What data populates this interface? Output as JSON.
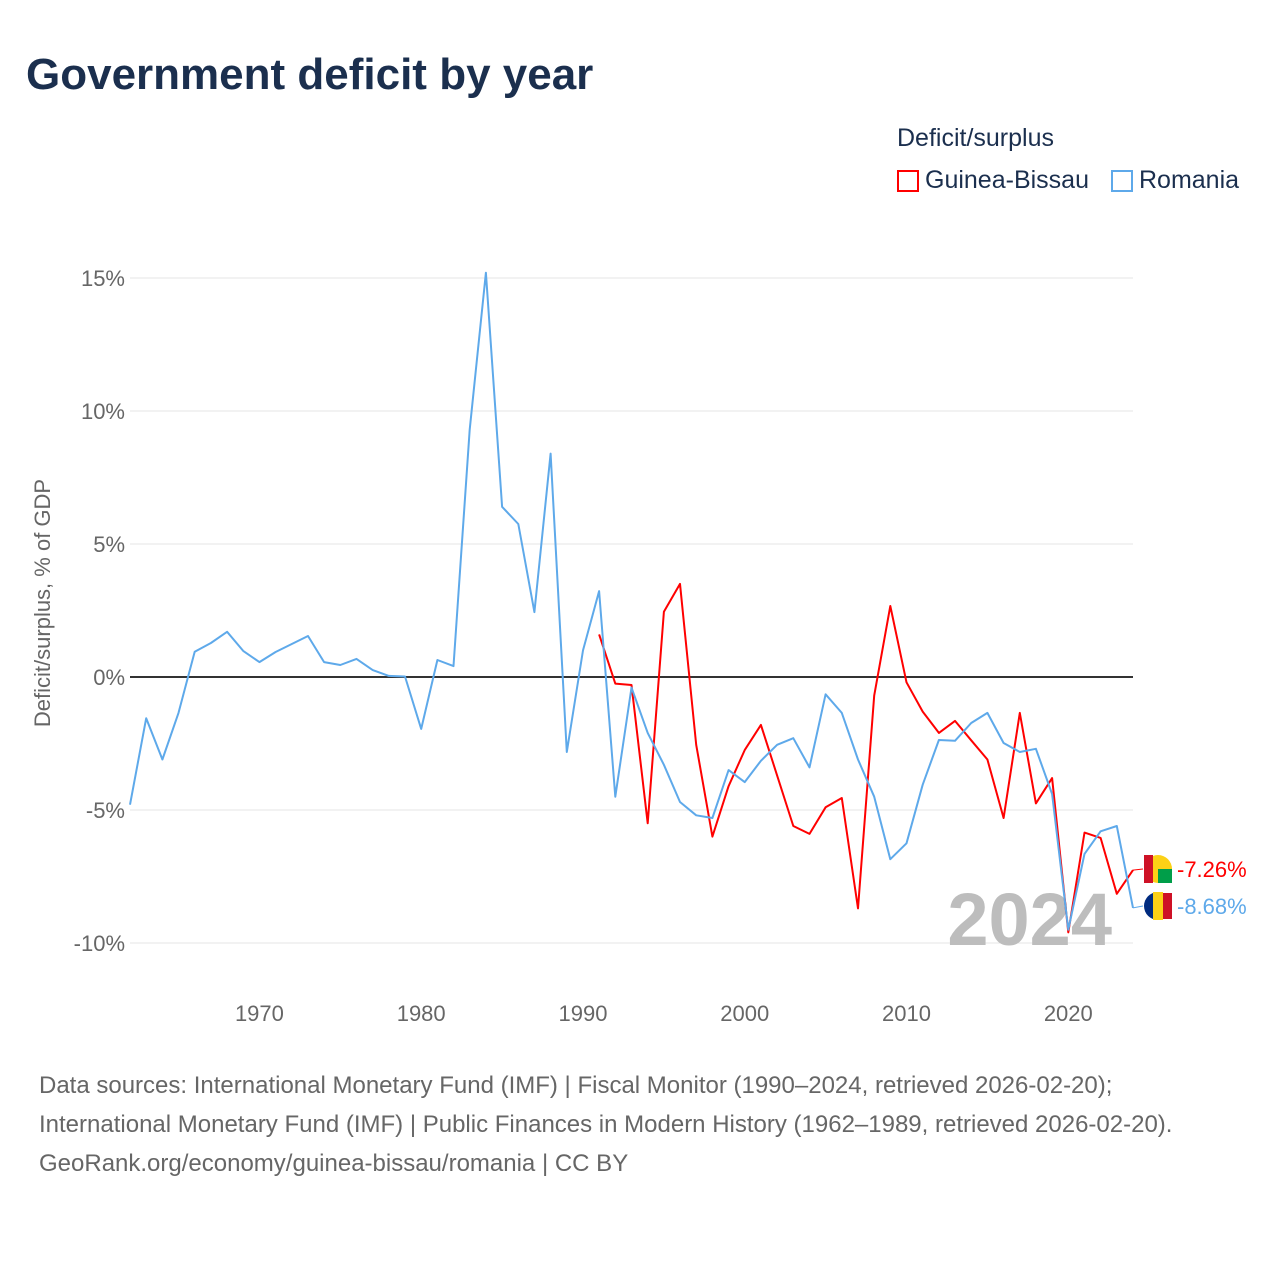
{
  "title": "Government deficit by year",
  "legend": {
    "title": "Deficit/surplus",
    "items": [
      {
        "label": "Guinea-Bissau",
        "color": "#ff0000"
      },
      {
        "label": "Romania",
        "color": "#5ea9ea"
      }
    ]
  },
  "chart_data": {
    "type": "line",
    "ylabel": "Deficit/surplus, % of GDP",
    "xlabel": "",
    "xlim": [
      1962,
      2024
    ],
    "ylim": [
      -11,
      16
    ],
    "yticks": [
      {
        "v": 15,
        "label": "15%"
      },
      {
        "v": 10,
        "label": "10%"
      },
      {
        "v": 5,
        "label": "5%"
      },
      {
        "v": 0,
        "label": "0%"
      },
      {
        "v": -5,
        "label": "-5%"
      },
      {
        "v": -10,
        "label": "-10%"
      }
    ],
    "xticks": [
      {
        "v": 1970,
        "label": "1970"
      },
      {
        "v": 1980,
        "label": "1980"
      },
      {
        "v": 1990,
        "label": "1990"
      },
      {
        "v": 2000,
        "label": "2000"
      },
      {
        "v": 2010,
        "label": "2010"
      },
      {
        "v": 2020,
        "label": "2020"
      }
    ],
    "year_watermark": "2024",
    "series": [
      {
        "name": "Guinea-Bissau",
        "color": "#ff0000",
        "end_label": "-7.26%",
        "start": 1991,
        "values": [
          1.6,
          -0.25,
          -0.3,
          -5.5,
          2.45,
          3.5,
          -2.55,
          -6.0,
          -4.1,
          -2.75,
          -1.8,
          -3.7,
          -5.6,
          -5.9,
          -4.9,
          -4.55,
          -8.7,
          -0.7,
          2.67,
          -0.2,
          -1.3,
          -2.1,
          -1.65,
          -2.38,
          -3.1,
          -5.3,
          -1.35,
          -4.75,
          -3.8,
          -9.6,
          -5.85,
          -6.05,
          -8.15,
          -7.26
        ]
      },
      {
        "name": "Romania",
        "color": "#5ea9ea",
        "end_label": "-8.68%",
        "start": 1962,
        "values": [
          -4.8,
          -1.55,
          -3.1,
          -1.35,
          0.95,
          1.28,
          1.7,
          0.98,
          0.56,
          0.94,
          1.24,
          1.54,
          0.56,
          0.45,
          0.68,
          0.26,
          0.04,
          0.02,
          -1.95,
          0.64,
          0.41,
          9.3,
          15.2,
          6.4,
          5.75,
          2.44,
          8.4,
          -2.82,
          1.0,
          3.23,
          -4.5,
          -0.4,
          -2.1,
          -3.3,
          -4.7,
          -5.2,
          -5.3,
          -3.5,
          -3.95,
          -3.15,
          -2.55,
          -2.3,
          -3.4,
          -0.65,
          -1.35,
          -3.1,
          -4.5,
          -6.85,
          -6.25,
          -4.05,
          -2.37,
          -2.4,
          -1.73,
          -1.35,
          -2.48,
          -2.82,
          -2.7,
          -4.4,
          -9.5,
          -6.65,
          -5.8,
          -5.6,
          -8.68
        ]
      }
    ]
  },
  "footer": {
    "sources": "Data sources: International Monetary Fund (IMF) | Fiscal Monitor (1990–2024, retrieved 2026-02-20); International Monetary Fund (IMF) | Public Finances in Modern History (1962–1989, retrieved 2026-02-20).",
    "credit": "GeoRank.org/economy/guinea-bissau/romania | CC BY"
  }
}
